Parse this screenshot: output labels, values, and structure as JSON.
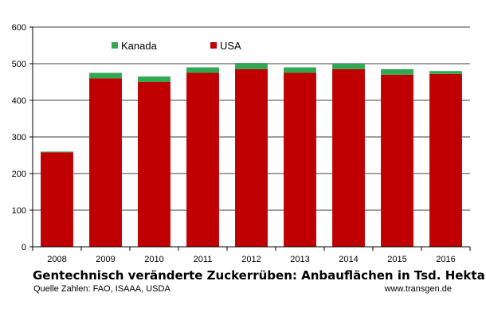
{
  "chart_data": {
    "type": "bar",
    "stacked": true,
    "title": "Gentechnisch veränderte Zuckerrüben: Anbauflächen in Tsd. Hektar",
    "source": "Quelle Zahlen: FAO, ISAAA, USDA",
    "website": "www.transgen.de",
    "categories": [
      "2008",
      "2009",
      "2010",
      "2011",
      "2012",
      "2013",
      "2014",
      "2015",
      "2016"
    ],
    "series": [
      {
        "name": "USA",
        "color": "#c00000",
        "values": [
          258,
          460,
          450,
          475,
          485,
          475,
          485,
          470,
          472
        ]
      },
      {
        "name": "Kanada",
        "color": "#33a852",
        "values": [
          2,
          15,
          15,
          15,
          17,
          15,
          15,
          15,
          8
        ]
      }
    ],
    "ylim": [
      0,
      600
    ],
    "yticks": [
      0,
      100,
      200,
      300,
      400,
      500,
      600
    ],
    "grid": true,
    "legend_position": "top-left",
    "legend_order": [
      "Kanada",
      "USA"
    ]
  }
}
